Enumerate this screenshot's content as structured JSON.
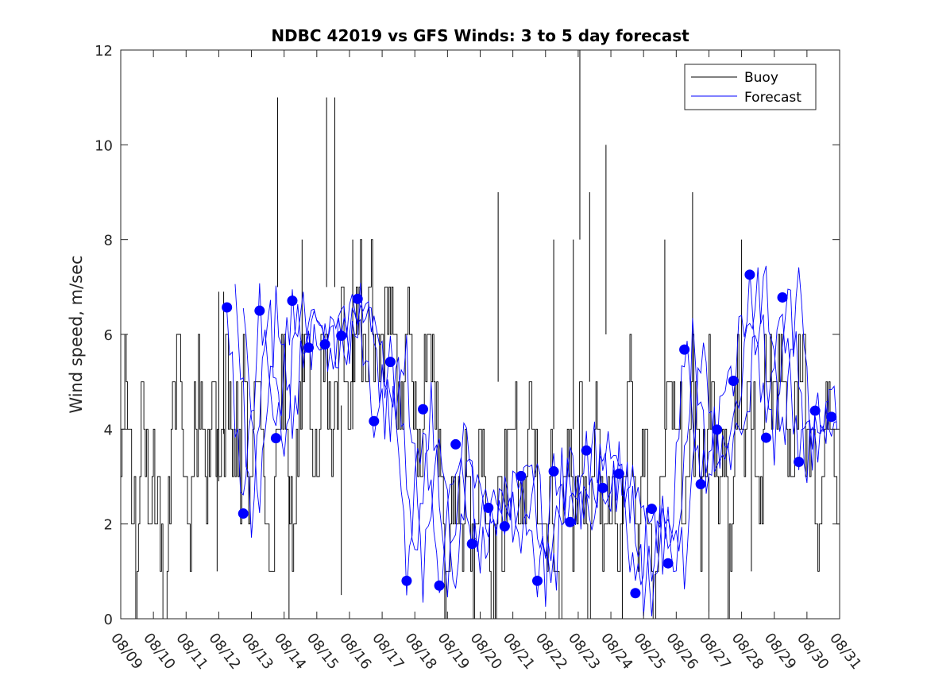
{
  "chart_data": {
    "type": "line",
    "title": "NDBC 42019 vs GFS Winds: 3 to 5 day forecast",
    "xlabel": "",
    "ylabel": "Wind speed, m/sec",
    "xlim": [
      0,
      22
    ],
    "ylim": [
      0,
      12
    ],
    "yticks": [
      0,
      2,
      4,
      6,
      8,
      10,
      12
    ],
    "xtick_labels": [
      "08/09",
      "08/10",
      "08/11",
      "08/12",
      "08/13",
      "08/14",
      "08/15",
      "08/16",
      "08/17",
      "08/18",
      "08/19",
      "08/20",
      "08/21",
      "08/22",
      "08/23",
      "08/24",
      "08/25",
      "08/26",
      "08/27",
      "08/28",
      "08/29",
      "08/30",
      "08/31"
    ],
    "legend": {
      "position": "top-right",
      "entries": [
        "Buoy",
        "Forecast"
      ]
    },
    "colors": {
      "buoy": "#000000",
      "forecast": "#0000ff",
      "axes": "#262626"
    },
    "buoy_daily_levels": [
      [
        3,
        5,
        4,
        2,
        1,
        4,
        3,
        2
      ],
      [
        3,
        2,
        1,
        0,
        3,
        5,
        6,
        4
      ],
      [
        2,
        2,
        4,
        5,
        4,
        3,
        5,
        4
      ],
      [
        3,
        4,
        6,
        3,
        4,
        3,
        5,
        3
      ],
      [
        4,
        5,
        4,
        3,
        2,
        1,
        4,
        5
      ],
      [
        5,
        3,
        1,
        4,
        6,
        7,
        5,
        4
      ],
      [
        4,
        6,
        5,
        3,
        4,
        5,
        6,
        4
      ],
      [
        5,
        6,
        7,
        6,
        5,
        7,
        6,
        5
      ],
      [
        6,
        7,
        6,
        5,
        4,
        5,
        6,
        5
      ],
      [
        4,
        3,
        5,
        6,
        5,
        4,
        2,
        1
      ],
      [
        2,
        3,
        2,
        1,
        4,
        2,
        1,
        3
      ],
      [
        4,
        2,
        0,
        1,
        3,
        2,
        3,
        4
      ],
      [
        5,
        3,
        2,
        4,
        5,
        3,
        2,
        1
      ],
      [
        2,
        3,
        1,
        0,
        3,
        4,
        2,
        3
      ],
      [
        4,
        2,
        1,
        3,
        4,
        2,
        1,
        3
      ],
      [
        2,
        1,
        3,
        4,
        5,
        3,
        2,
        4
      ],
      [
        3,
        1,
        0,
        2,
        3,
        4,
        5,
        3
      ],
      [
        4,
        2,
        3,
        5,
        4,
        2,
        3,
        5
      ],
      [
        5,
        3,
        2,
        4,
        1,
        3,
        5,
        4
      ],
      [
        3,
        5,
        4,
        2,
        3,
        6,
        5,
        4
      ],
      [
        5,
        6,
        4,
        3,
        4,
        5,
        6,
        3
      ],
      [
        4,
        2,
        1,
        3,
        5,
        4,
        3,
        2
      ]
    ],
    "buoy_spikes": [
      {
        "x": 3.15,
        "y": 3.9
      },
      {
        "x": 3.0,
        "y": 6.9
      },
      {
        "x": 2.95,
        "y": 1.0
      },
      {
        "x": 4.8,
        "y": 11.0
      },
      {
        "x": 5.15,
        "y": 0.0
      },
      {
        "x": 5.55,
        "y": 8.0
      },
      {
        "x": 6.3,
        "y": 11.0
      },
      {
        "x": 6.55,
        "y": 11.0
      },
      {
        "x": 6.75,
        "y": 4.5
      },
      {
        "x": 7.1,
        "y": 8.0
      },
      {
        "x": 11.55,
        "y": 9.0
      },
      {
        "x": 13.25,
        "y": 8.0
      },
      {
        "x": 13.85,
        "y": 8.0
      },
      {
        "x": 14.05,
        "y": 12.0
      },
      {
        "x": 14.35,
        "y": 9.0
      },
      {
        "x": 14.85,
        "y": 10.0
      },
      {
        "x": 15.35,
        "y": 0.0
      },
      {
        "x": 16.65,
        "y": 8.0
      },
      {
        "x": 17.5,
        "y": 9.0
      },
      {
        "x": 18.0,
        "y": 0.0
      },
      {
        "x": 19.0,
        "y": 8.0
      },
      {
        "x": 19.3,
        "y": 1.0
      }
    ],
    "forecast_points": [
      {
        "x": 3.25,
        "y": 6.57
      },
      {
        "x": 3.75,
        "y": 2.22
      },
      {
        "x": 4.25,
        "y": 6.5
      },
      {
        "x": 4.75,
        "y": 3.81
      },
      {
        "x": 5.25,
        "y": 6.71
      },
      {
        "x": 5.75,
        "y": 5.72
      },
      {
        "x": 6.25,
        "y": 5.79
      },
      {
        "x": 6.75,
        "y": 5.97
      },
      {
        "x": 7.25,
        "y": 6.75
      },
      {
        "x": 7.75,
        "y": 4.17
      },
      {
        "x": 8.25,
        "y": 5.42
      },
      {
        "x": 8.75,
        "y": 0.8
      },
      {
        "x": 9.25,
        "y": 4.42
      },
      {
        "x": 9.75,
        "y": 0.7
      },
      {
        "x": 10.25,
        "y": 3.68
      },
      {
        "x": 10.75,
        "y": 1.58
      },
      {
        "x": 11.25,
        "y": 2.34
      },
      {
        "x": 11.75,
        "y": 1.95
      },
      {
        "x": 12.25,
        "y": 3.01
      },
      {
        "x": 12.75,
        "y": 0.8
      },
      {
        "x": 13.25,
        "y": 3.11
      },
      {
        "x": 13.75,
        "y": 2.04
      },
      {
        "x": 14.25,
        "y": 3.55
      },
      {
        "x": 14.75,
        "y": 2.76
      },
      {
        "x": 15.25,
        "y": 3.06
      },
      {
        "x": 15.75,
        "y": 0.54
      },
      {
        "x": 16.25,
        "y": 2.32
      },
      {
        "x": 16.75,
        "y": 1.17
      },
      {
        "x": 17.25,
        "y": 5.68
      },
      {
        "x": 17.75,
        "y": 2.84
      },
      {
        "x": 18.25,
        "y": 3.99
      },
      {
        "x": 18.75,
        "y": 5.02
      },
      {
        "x": 19.25,
        "y": 7.26
      },
      {
        "x": 19.75,
        "y": 3.82
      },
      {
        "x": 20.25,
        "y": 6.78
      },
      {
        "x": 20.75,
        "y": 3.31
      },
      {
        "x": 21.25,
        "y": 4.39
      },
      {
        "x": 21.75,
        "y": 4.26
      }
    ],
    "forecast_members": 3
  }
}
